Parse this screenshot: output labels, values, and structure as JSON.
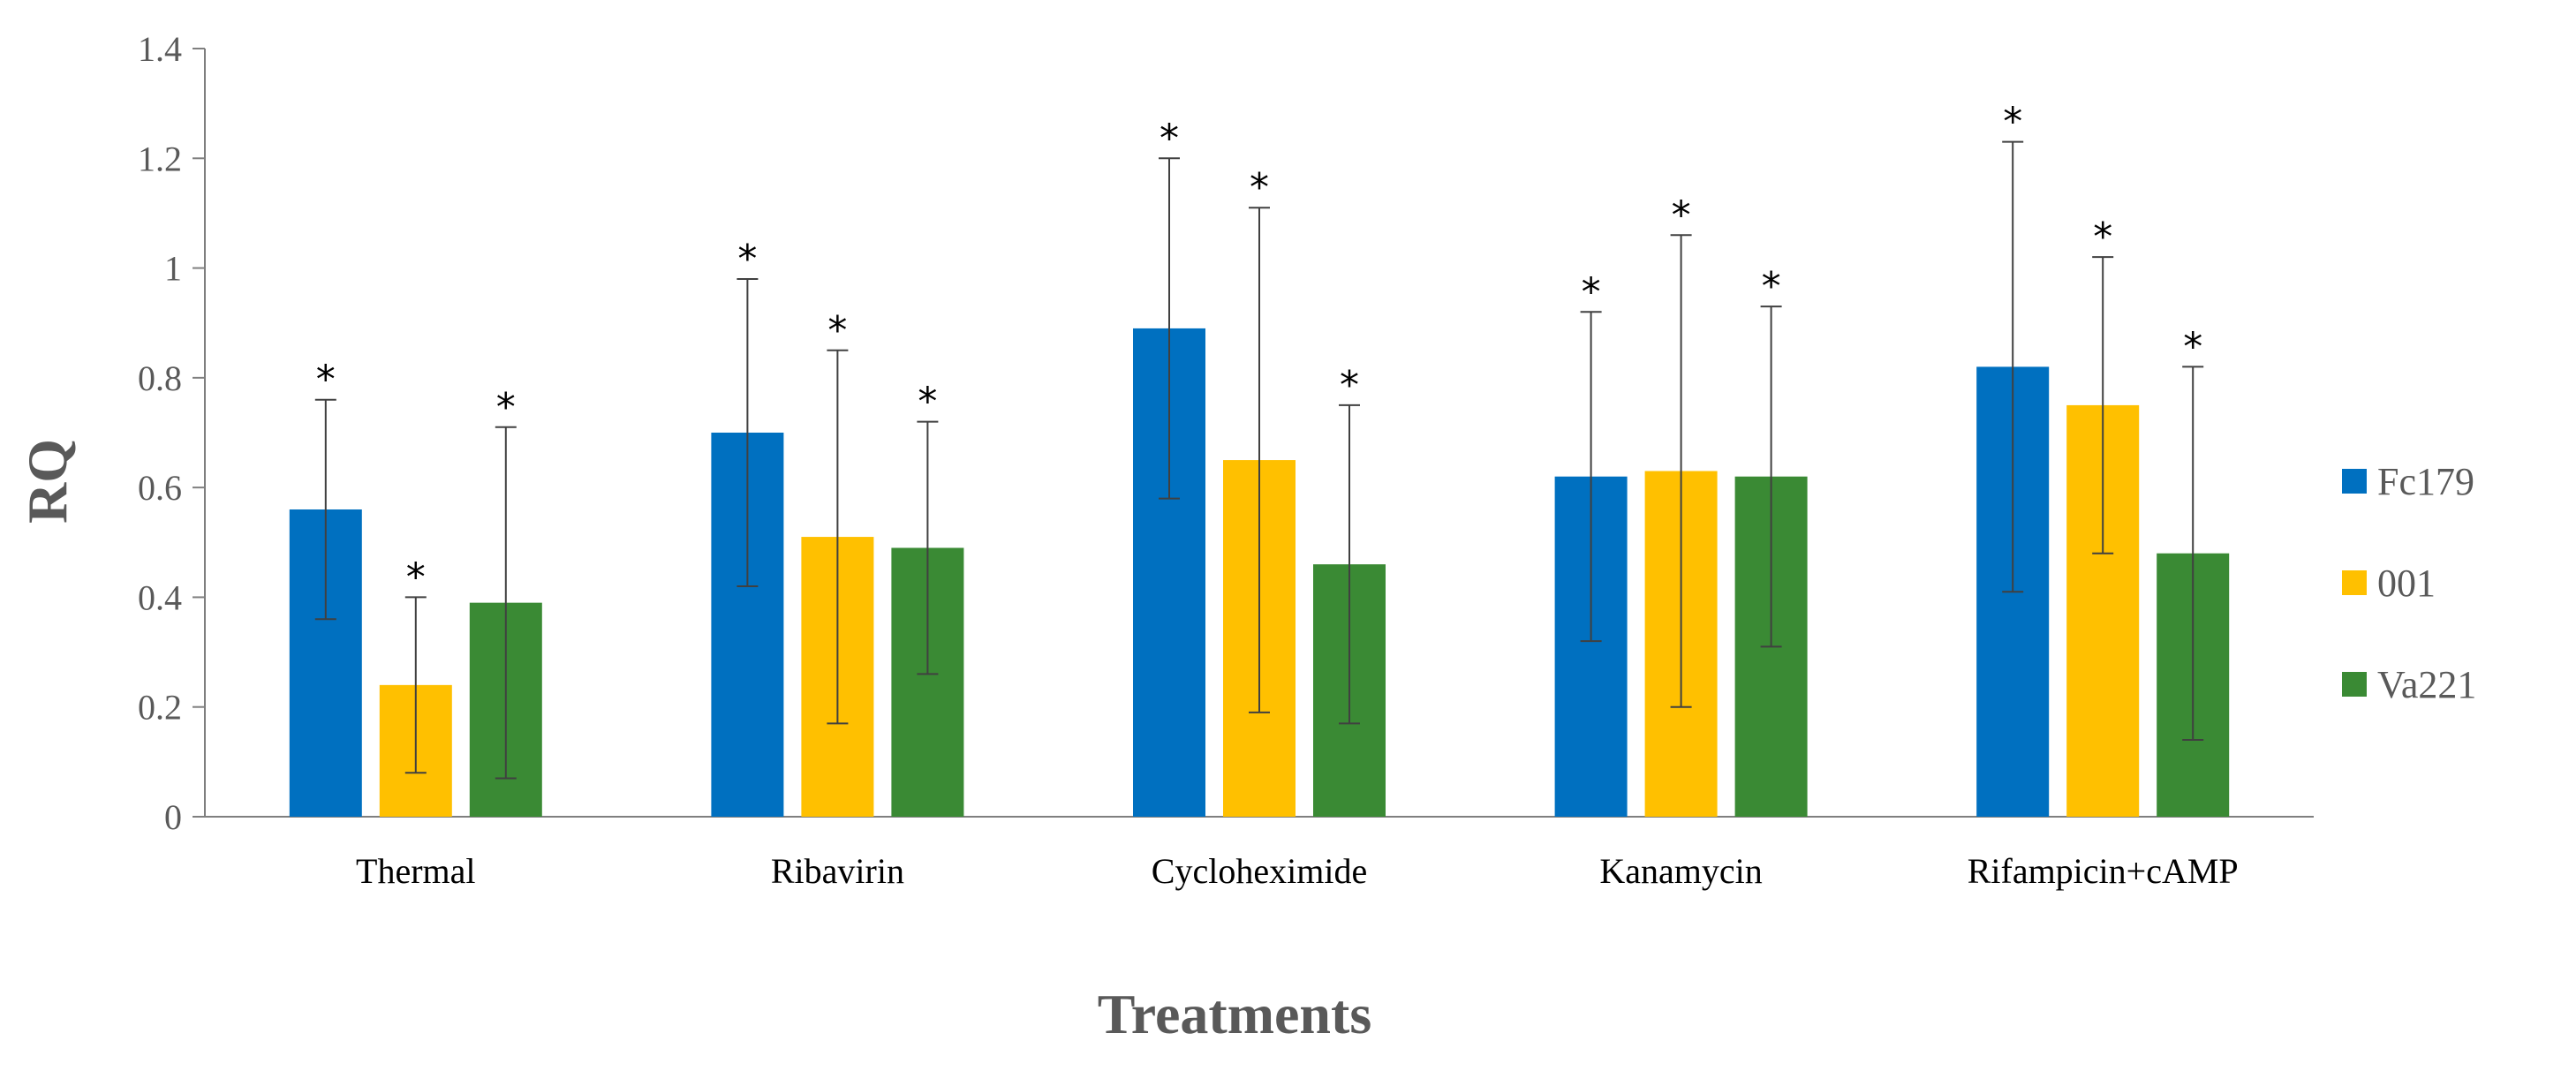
{
  "chart_data": {
    "type": "bar",
    "xlabel": "Treatments",
    "ylabel": "RQ",
    "ylim": [
      0,
      1.4
    ],
    "yticks": [
      "0",
      "0.2",
      "0.4",
      "0.6",
      "0.8",
      "1",
      "1.2",
      "1.4"
    ],
    "categories": [
      "Thermal",
      "Ribavirin",
      "Cycloheximide",
      "Kanamycin",
      "Rifampicin+cAMP"
    ],
    "series": [
      {
        "name": "Fc179",
        "color": "#0070C0",
        "values": [
          0.56,
          0.7,
          0.89,
          0.62,
          0.82
        ],
        "error_low": [
          0.36,
          0.42,
          0.58,
          0.32,
          0.41
        ],
        "error_high": [
          0.76,
          0.98,
          1.2,
          0.92,
          1.23
        ]
      },
      {
        "name": "001",
        "color": "#FFC000",
        "values": [
          0.24,
          0.51,
          0.65,
          0.63,
          0.75
        ],
        "error_low": [
          0.08,
          0.17,
          0.19,
          0.2,
          0.48
        ],
        "error_high": [
          0.4,
          0.85,
          1.11,
          1.06,
          1.02
        ]
      },
      {
        "name": "Va221",
        "color": "#3A8A34",
        "values": [
          0.39,
          0.49,
          0.46,
          0.62,
          0.48
        ],
        "error_low": [
          0.07,
          0.26,
          0.17,
          0.31,
          0.14
        ],
        "error_high": [
          0.71,
          0.72,
          0.75,
          0.93,
          0.82
        ]
      }
    ],
    "significance_marker": "*",
    "grid": false,
    "legend_position": "right"
  }
}
